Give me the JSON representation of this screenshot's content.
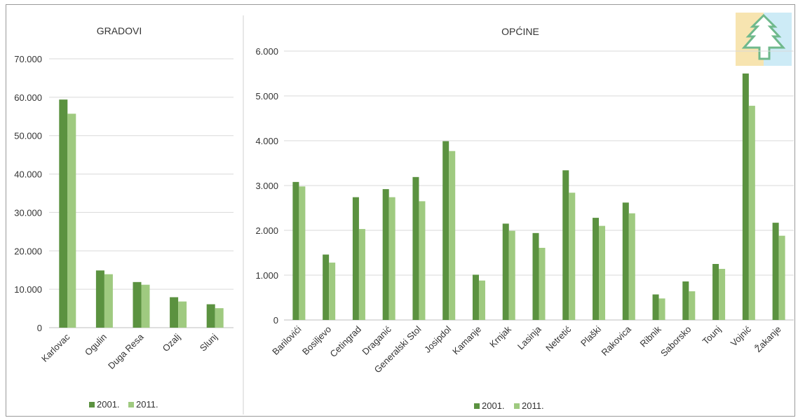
{
  "chart_data": [
    {
      "type": "bar",
      "title": "GRADOVI",
      "categories": [
        "Karlovac",
        "Ogulin",
        "Duga Resa",
        "Ozalj",
        "Slunj"
      ],
      "series": [
        {
          "name": "2001.",
          "values": [
            59395,
            14899,
            11880,
            7932,
            6096
          ]
        },
        {
          "name": "2011.",
          "values": [
            55705,
            13915,
            11180,
            6817,
            5076
          ]
        }
      ],
      "ylim": [
        0,
        70000
      ],
      "yticks": [
        0,
        10000,
        20000,
        30000,
        40000,
        50000,
        60000,
        70000
      ],
      "ytick_labels": [
        "0",
        "10.000",
        "20.000",
        "30.000",
        "40.000",
        "50.000",
        "60.000",
        "70.000"
      ],
      "grid": true,
      "legend": "bottom"
    },
    {
      "type": "bar",
      "title": "OPĆINE",
      "categories": [
        "Barilovići",
        "Bosiljevo",
        "Cetingrad",
        "Draganić",
        "Generalski Stol",
        "Josipdol",
        "Kamanje",
        "Krnjak",
        "Lasinja",
        "Netretić",
        "Plaški",
        "Rakovica",
        "Ribnik",
        "Saborsko",
        "Tounj",
        "Vojnić",
        "Žakanje"
      ],
      "series": [
        {
          "name": "2001.",
          "values": [
            3080,
            1460,
            2740,
            2920,
            3190,
            3990,
            1010,
            2150,
            1940,
            3340,
            2280,
            2620,
            570,
            860,
            1250,
            5500,
            2170
          ]
        },
        {
          "name": "2011.",
          "values": [
            2980,
            1280,
            2030,
            2740,
            2650,
            3770,
            880,
            1990,
            1610,
            2840,
            2100,
            2380,
            480,
            640,
            1140,
            4780,
            1880
          ]
        }
      ],
      "ylim": [
        0,
        6000
      ],
      "yticks": [
        0,
        1000,
        2000,
        3000,
        4000,
        5000,
        6000
      ],
      "ytick_labels": [
        "0",
        "1.000",
        "2.000",
        "3.000",
        "4.000",
        "5.000",
        "6.000"
      ],
      "grid": true,
      "legend": "bottom"
    }
  ],
  "colors": {
    "series_2001": "#5b9240",
    "series_2011": "#9fca80",
    "grid": "#d9d9d9",
    "logo_bg_left": "#f7e4b0",
    "logo_bg_right": "#cdebf6",
    "logo_tree": "#ffffff",
    "logo_tree_stroke": "#6fb98c"
  },
  "icons": {
    "logo": "fir-tree-logo-icon"
  }
}
